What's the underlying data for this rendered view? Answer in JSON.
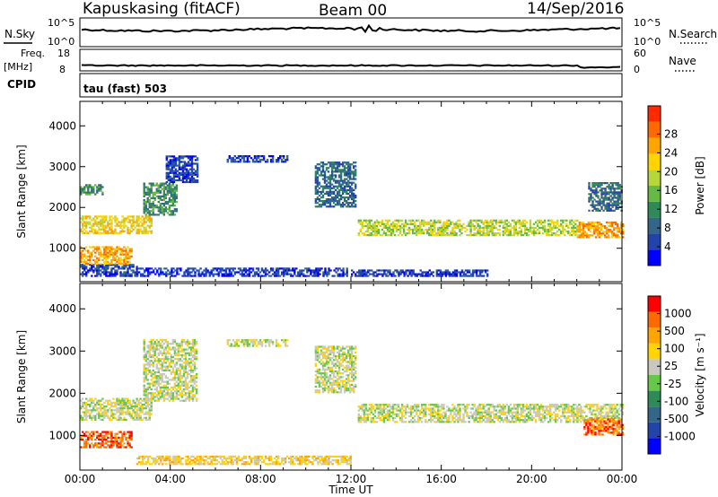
{
  "header": {
    "station": "Kapuskasing (fitACF)",
    "beam": "Beam 00",
    "date": "14/Sep/2016"
  },
  "aux_panels": {
    "nsky_label": "N.Sky",
    "nsky_ticks": [
      "10^5",
      "10^0"
    ],
    "nsearch_label": "N.Search",
    "nsearch_ticks": [
      "10^5",
      "10^0"
    ],
    "freq_label": "Freq.",
    "freq_unit": "[MHz]",
    "freq_ticks": [
      "18",
      "8"
    ],
    "nave_label": "Nave",
    "nave_ticks": [
      "60",
      "0"
    ],
    "cpid_label": "CPID",
    "cpid_text": "tau (fast) 503"
  },
  "chart_data": [
    {
      "type": "heatmap",
      "panel": "power",
      "xlabel": "Time UT",
      "ylabel": "Slant Range [km]",
      "x_ticks": [
        "00:00",
        "04:00",
        "08:00",
        "12:00",
        "16:00",
        "20:00",
        "00:00"
      ],
      "y_ticks": [
        1000,
        2000,
        3000,
        4000
      ],
      "ylim": [
        180,
        4600
      ],
      "xlim_hours": [
        0,
        24
      ],
      "colorbar": {
        "label": "Power [dB]",
        "ticks": [
          "4",
          "8",
          "12",
          "16",
          "20",
          "24",
          "28"
        ],
        "colors": [
          "#0000ff",
          "#2244aa",
          "#336688",
          "#2e8b57",
          "#66b944",
          "#b6d63a",
          "#ffd400",
          "#ffa500",
          "#ff6a00",
          "#ff2a00"
        ]
      },
      "regions": [
        {
          "t": [
            0.0,
            2.5
          ],
          "r": [
            300,
            600
          ],
          "level": 1
        },
        {
          "t": [
            0.0,
            2.3
          ],
          "r": [
            600,
            1050
          ],
          "level": 7
        },
        {
          "t": [
            0.0,
            3.2
          ],
          "r": [
            1350,
            1800
          ],
          "level": 6
        },
        {
          "t": [
            0.0,
            1.0
          ],
          "r": [
            2300,
            2550
          ],
          "level": 3
        },
        {
          "t": [
            2.8,
            4.3
          ],
          "r": [
            1800,
            2600
          ],
          "level": 3
        },
        {
          "t": [
            3.8,
            5.2
          ],
          "r": [
            2600,
            3250
          ],
          "level": 1
        },
        {
          "t": [
            2.5,
            11.8
          ],
          "r": [
            300,
            500
          ],
          "level": 1
        },
        {
          "t": [
            6.5,
            9.2
          ],
          "r": [
            3100,
            3250
          ],
          "level": 1
        },
        {
          "t": [
            10.4,
            12.2
          ],
          "r": [
            2000,
            3100
          ],
          "level": 2
        },
        {
          "t": [
            12.3,
            22.0
          ],
          "r": [
            1300,
            1700
          ],
          "level": 5
        },
        {
          "t": [
            12.0,
            18.0
          ],
          "r": [
            300,
            450
          ],
          "level": 1
        },
        {
          "t": [
            22.0,
            24.0
          ],
          "r": [
            1250,
            1650
          ],
          "level": 7
        },
        {
          "t": [
            22.5,
            24.0
          ],
          "r": [
            1900,
            2600
          ],
          "level": 2
        }
      ]
    },
    {
      "type": "heatmap",
      "panel": "velocity",
      "xlabel": "Time UT",
      "ylabel": "Slant Range [km]",
      "x_ticks": [
        "00:00",
        "04:00",
        "08:00",
        "12:00",
        "16:00",
        "20:00",
        "00:00"
      ],
      "y_ticks": [
        1000,
        2000,
        3000,
        4000
      ],
      "ylim": [
        180,
        4600
      ],
      "xlim_hours": [
        0,
        24
      ],
      "colorbar": {
        "label": "Velocity [m s⁻¹]",
        "ticks": [
          "1000",
          "500",
          "100",
          "25",
          "-25",
          "-100",
          "-500",
          "-1000"
        ],
        "colors": [
          "#0000ff",
          "#2244aa",
          "#336688",
          "#2e8b57",
          "#66c84a",
          "#c8c8c0",
          "#ffd400",
          "#ffa500",
          "#ff6a00",
          "#ff0000"
        ]
      },
      "regions": [
        {
          "t": [
            0.0,
            3.2
          ],
          "r": [
            1350,
            1850
          ],
          "level": 5
        },
        {
          "t": [
            0.0,
            2.3
          ],
          "r": [
            700,
            1100
          ],
          "level": 8
        },
        {
          "t": [
            2.5,
            12.0
          ],
          "r": [
            300,
            500
          ],
          "level": 6
        },
        {
          "t": [
            2.8,
            5.2
          ],
          "r": [
            1800,
            3250
          ],
          "level": 5
        },
        {
          "t": [
            6.5,
            9.2
          ],
          "r": [
            3100,
            3250
          ],
          "level": 5
        },
        {
          "t": [
            10.4,
            12.2
          ],
          "r": [
            2000,
            3100
          ],
          "level": 5
        },
        {
          "t": [
            12.3,
            24.0
          ],
          "r": [
            1300,
            1750
          ],
          "level": 5
        },
        {
          "t": [
            22.3,
            24.0
          ],
          "r": [
            1000,
            1400
          ],
          "level": 8
        }
      ]
    }
  ]
}
